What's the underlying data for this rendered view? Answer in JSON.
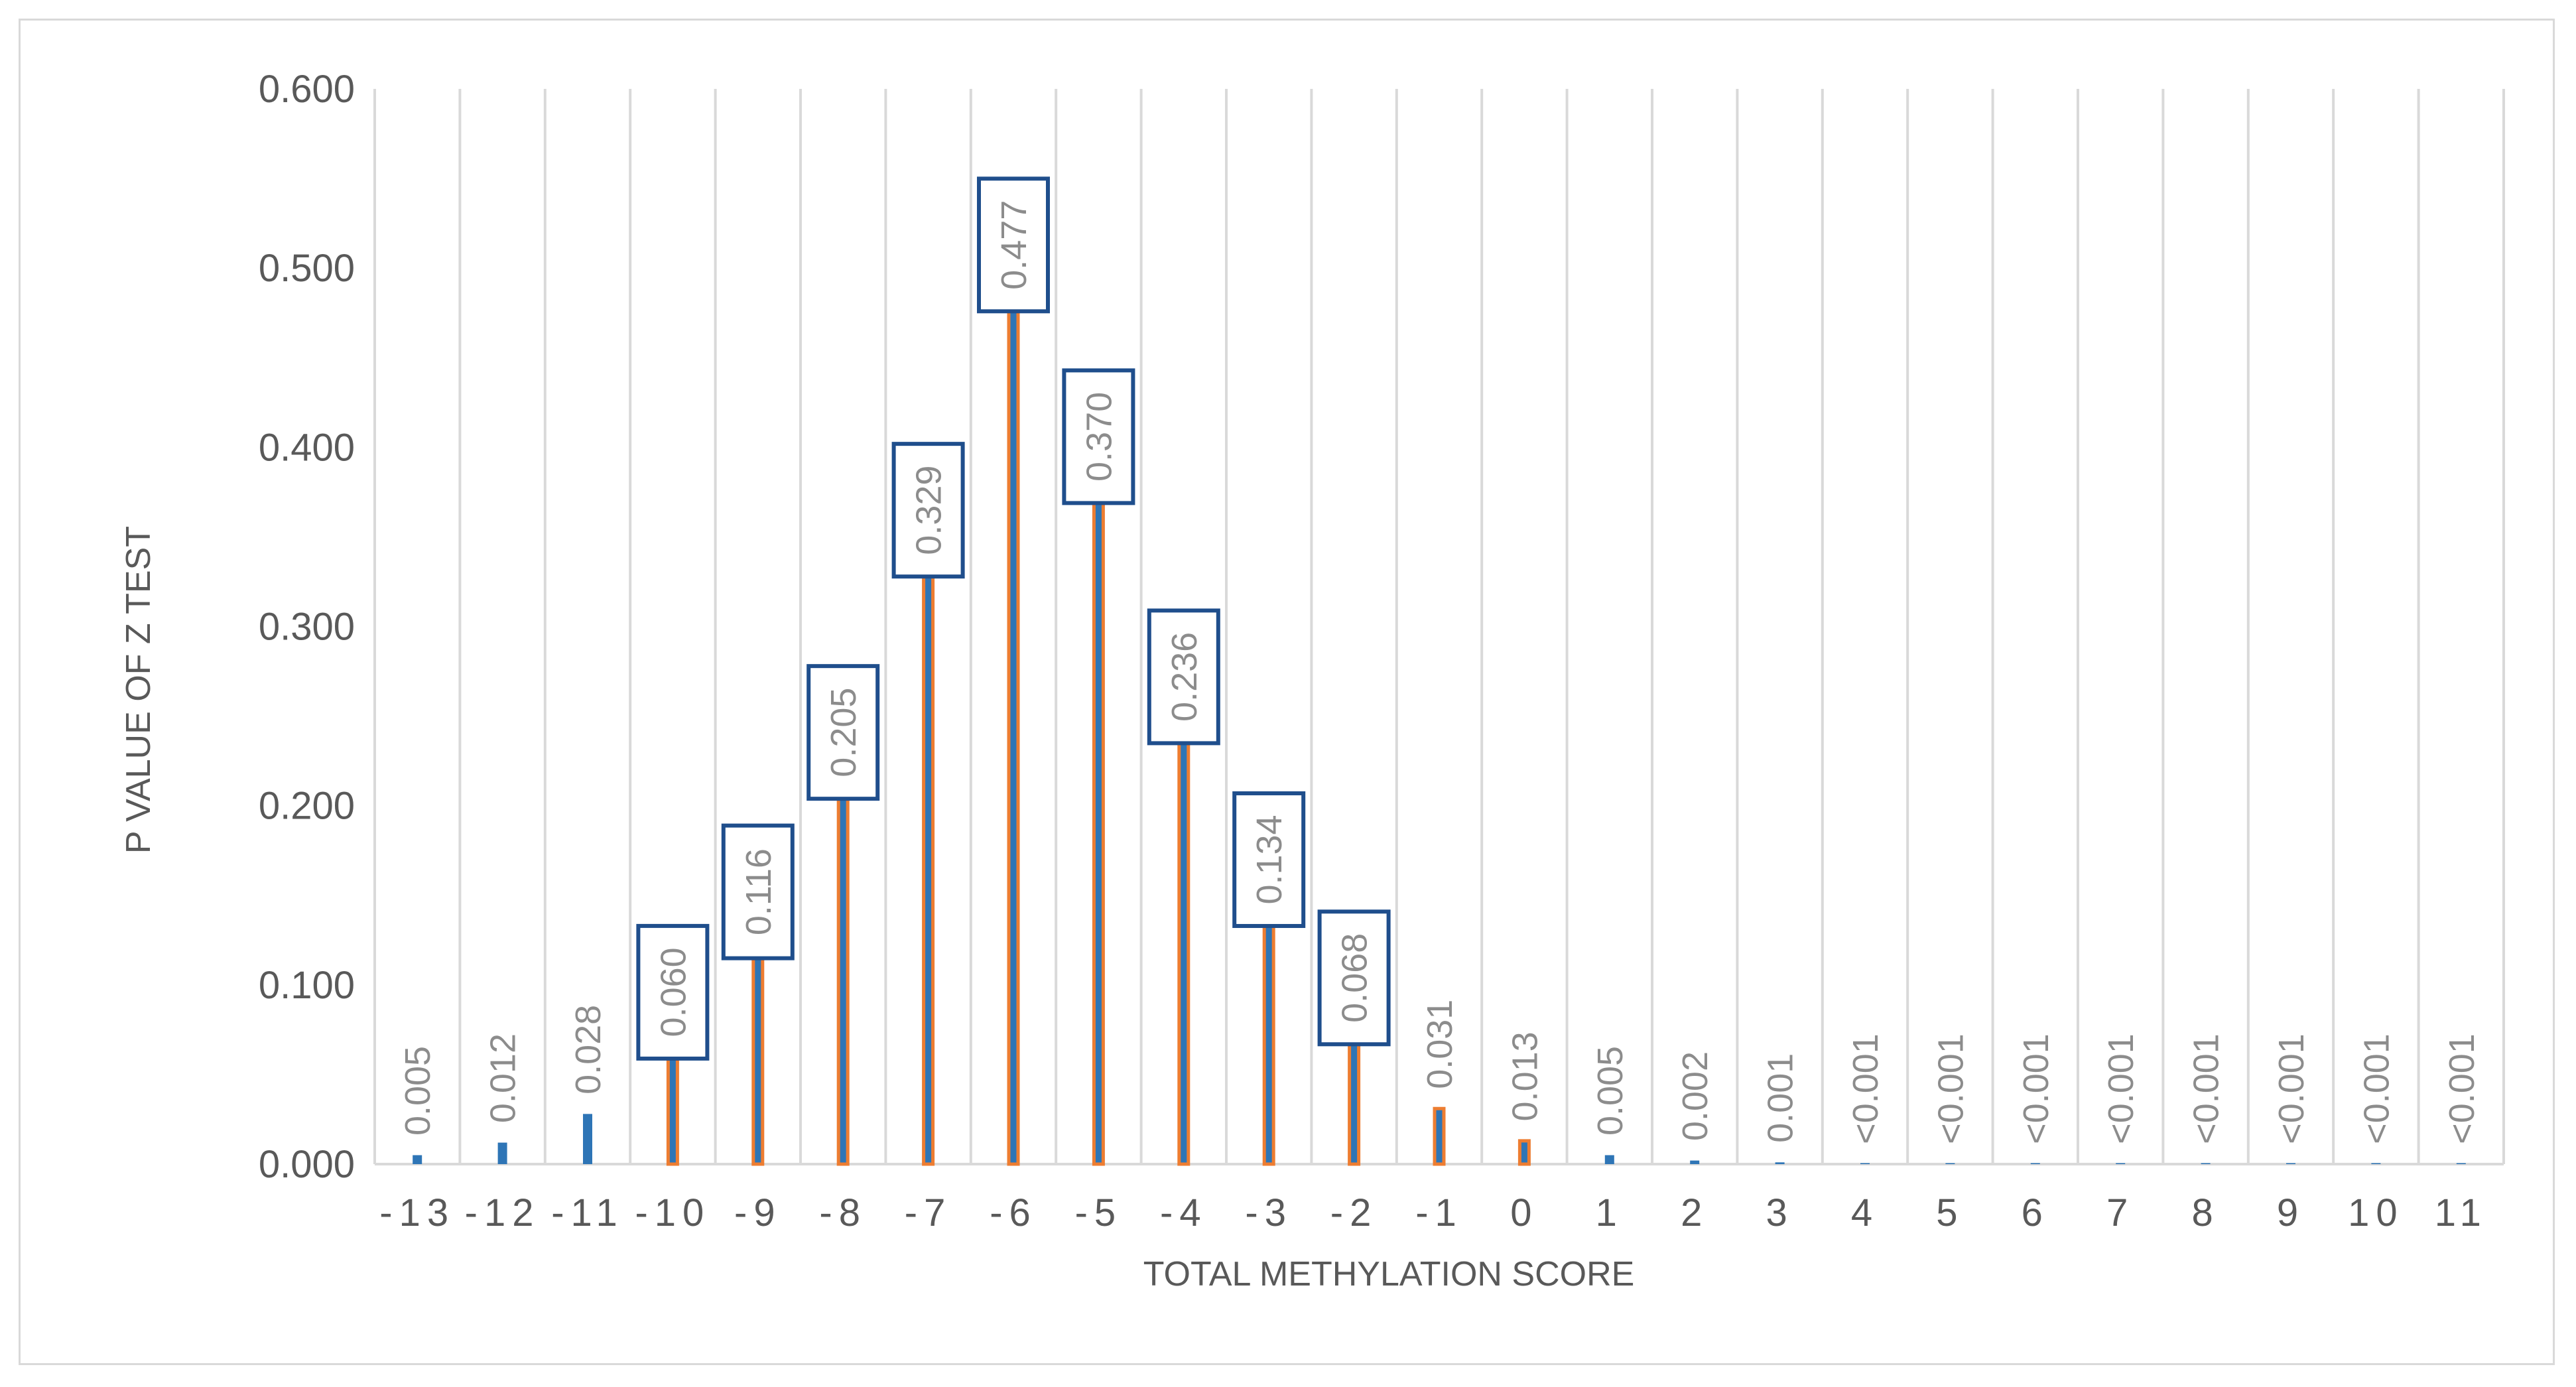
{
  "chart_data": {
    "type": "bar",
    "title": "",
    "xlabel": "TOTAL METHYLATION SCORE",
    "ylabel": "P VALUE OF Z TEST",
    "ylim": [
      0,
      0.6
    ],
    "yticks": [
      "0.000",
      "0.100",
      "0.200",
      "0.300",
      "0.400",
      "0.500",
      "0.600"
    ],
    "grid": "vertical",
    "categories": [
      "-13",
      "-12",
      "-11",
      "-10",
      "-9",
      "-8",
      "-7",
      "-6",
      "-5",
      "-4",
      "-3",
      "-2",
      "-1",
      "0",
      "1",
      "2",
      "3",
      "4",
      "5",
      "6",
      "7",
      "8",
      "9",
      "10",
      "11"
    ],
    "values": [
      0.005,
      0.012,
      0.028,
      0.06,
      0.116,
      0.205,
      0.329,
      0.477,
      0.37,
      0.236,
      0.134,
      0.068,
      0.031,
      0.013,
      0.005,
      0.002,
      0.001,
      0.0005,
      0.0005,
      0.0005,
      0.0005,
      0.0005,
      0.0005,
      0.0005,
      0.0005
    ],
    "data_labels": [
      "0.005",
      "0.012",
      "0.028",
      "0.060",
      "0.116",
      "0.205",
      "0.329",
      "0.477",
      "0.370",
      "0.236",
      "0.134",
      "0.068",
      "0.031",
      "0.013",
      "0.005",
      "0.002",
      "0.001",
      "<0.001",
      "<0.001",
      "<0.001",
      "<0.001",
      "<0.001",
      "<0.001",
      "<0.001",
      "<0.001"
    ],
    "highlighted": [
      false,
      false,
      false,
      true,
      true,
      true,
      true,
      true,
      true,
      true,
      true,
      true,
      true,
      true,
      false,
      false,
      false,
      false,
      false,
      false,
      false,
      false,
      false,
      false,
      false
    ],
    "boxed_labels": [
      false,
      false,
      false,
      true,
      true,
      true,
      true,
      true,
      true,
      true,
      true,
      true,
      false,
      false,
      false,
      false,
      false,
      false,
      false,
      false,
      false,
      false,
      false,
      false,
      false
    ],
    "colors": {
      "bar": "#2e75b6",
      "highlight_outline": "#ed7d31",
      "label_box": "#1f4e8c",
      "grid": "#d9d9d9",
      "text": "#595959",
      "data_label": "#8c8c8c"
    }
  }
}
